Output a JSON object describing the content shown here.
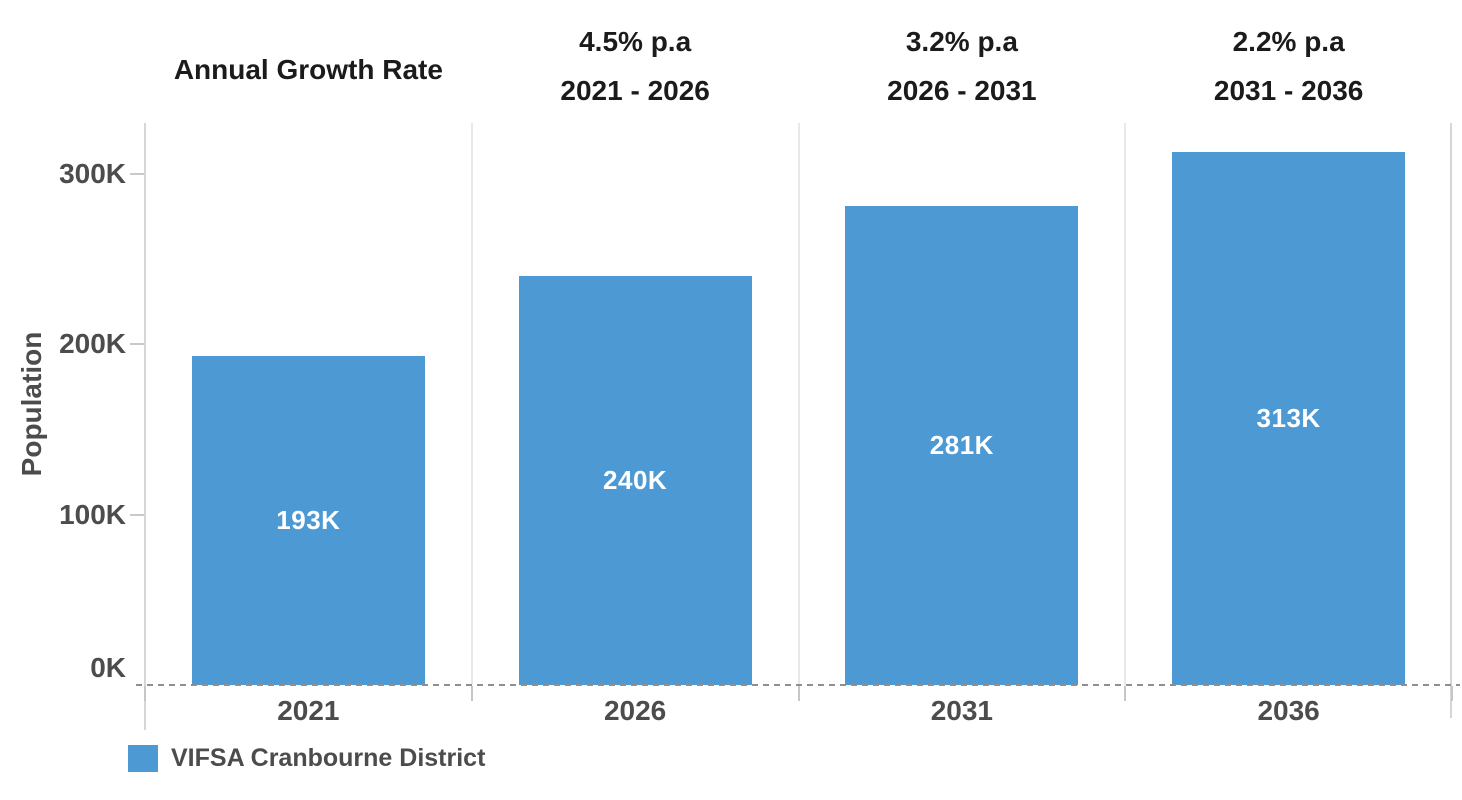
{
  "chart_data": {
    "type": "bar",
    "title": "Annual Growth Rate",
    "growth_annotations": [
      {
        "rate": "4.5% p.a",
        "period": "2021 - 2026"
      },
      {
        "rate": "3.2% p.a",
        "period": "2026 - 2031"
      },
      {
        "rate": "2.2% p.a",
        "period": "2031 - 2036"
      }
    ],
    "categories": [
      "2021",
      "2026",
      "2031",
      "2036"
    ],
    "series": [
      {
        "name": "VIFSA Cranbourne District",
        "color": "#4d99d4",
        "values": [
          193000,
          240000,
          281000,
          313000
        ],
        "labels": [
          "193K",
          "240K",
          "281K",
          "313K"
        ]
      }
    ],
    "ylabel": "Population",
    "ylim": [
      0,
      330000
    ],
    "yticks": [
      {
        "value": 0,
        "label": "0K"
      },
      {
        "value": 100000,
        "label": "100K"
      },
      {
        "value": 200000,
        "label": "200K"
      },
      {
        "value": 300000,
        "label": "300K"
      }
    ],
    "grid": false,
    "legend": {
      "position": "bottom-left",
      "entries": [
        {
          "label": "VIFSA Cranbourne District",
          "color": "#4d99d4"
        }
      ]
    }
  }
}
